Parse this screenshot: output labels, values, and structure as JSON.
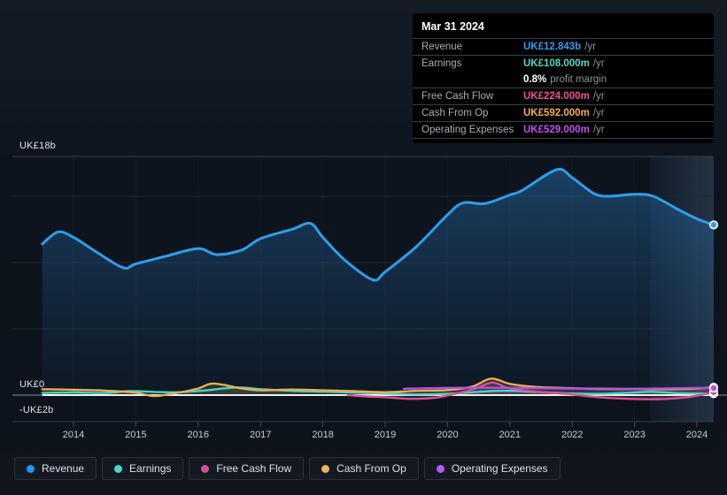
{
  "y_axis": {
    "labels": [
      "UK£18b",
      "UK£0",
      "-UK£2b"
    ]
  },
  "x_axis": {
    "years": [
      "2014",
      "2015",
      "2016",
      "2017",
      "2018",
      "2019",
      "2020",
      "2021",
      "2022",
      "2023",
      "2024"
    ]
  },
  "tooltip": {
    "date": "Mar 31 2024",
    "rows": [
      {
        "label": "Revenue",
        "value": "UK£12.843b",
        "suffix": "/yr",
        "color": "#2d9cf4"
      },
      {
        "label": "Earnings",
        "value": "UK£108.000m",
        "suffix": "/yr",
        "color": "#4fd8c4"
      },
      {
        "label": "Free Cash Flow",
        "value": "UK£224.000m",
        "suffix": "/yr",
        "color": "#ef4fa0"
      },
      {
        "label": "Cash From Op",
        "value": "UK£592.000m",
        "suffix": "/yr",
        "color": "#f2b04e"
      },
      {
        "label": "Operating Expenses",
        "value": "UK£529.000m",
        "suffix": "/yr",
        "color": "#c44ff0"
      }
    ],
    "profit_margin": {
      "value": "0.8%",
      "text": "profit margin"
    }
  },
  "legend": {
    "items": [
      {
        "label": "Revenue",
        "color": "#2196f3"
      },
      {
        "label": "Earnings",
        "color": "#4bd6c3"
      },
      {
        "label": "Free Cash Flow",
        "color": "#cf5090"
      },
      {
        "label": "Cash From Op",
        "color": "#eab457"
      },
      {
        "label": "Operating Expenses",
        "color": "#b25cf0"
      }
    ]
  },
  "chart_data": {
    "type": "area",
    "title": "Revenue & earnings history with tooltip for Mar 31 2024",
    "x_unit": "fiscal year (decimal)",
    "y_unit": "UK£ billions",
    "xlim": [
      2013.5,
      2024.45
    ],
    "ylim": [
      -2,
      18
    ],
    "x_ticks": [
      2014,
      2015,
      2016,
      2017,
      2018,
      2019,
      2020,
      2021,
      2022,
      2023,
      2024
    ],
    "y_gridlines": [
      18,
      15,
      10,
      5,
      -2
    ],
    "zero_line": 0,
    "grid": true,
    "legend_position": "bottom-left",
    "highlight_band": {
      "from": 2023.25,
      "to": 2024.27
    },
    "series": [
      {
        "name": "Revenue",
        "color": "#2f9de9",
        "width": 3,
        "fill": "gradient",
        "points": [
          [
            2013.5,
            11.4
          ],
          [
            2013.75,
            12.3
          ],
          [
            2014,
            11.9
          ],
          [
            2014.4,
            10.7
          ],
          [
            2014.8,
            9.6
          ],
          [
            2015,
            9.9
          ],
          [
            2015.5,
            10.5
          ],
          [
            2016,
            11.05
          ],
          [
            2016.3,
            10.6
          ],
          [
            2016.7,
            10.95
          ],
          [
            2017,
            11.8
          ],
          [
            2017.5,
            12.5
          ],
          [
            2017.8,
            12.95
          ],
          [
            2018,
            11.9
          ],
          [
            2018.35,
            10.2
          ],
          [
            2018.8,
            8.7
          ],
          [
            2019,
            9.3
          ],
          [
            2019.5,
            11.2
          ],
          [
            2020,
            13.6
          ],
          [
            2020.25,
            14.5
          ],
          [
            2020.6,
            14.45
          ],
          [
            2021,
            15.1
          ],
          [
            2021.2,
            15.45
          ],
          [
            2021.75,
            17.0
          ],
          [
            2022,
            16.4
          ],
          [
            2022.35,
            15.2
          ],
          [
            2022.6,
            15.0
          ],
          [
            2023,
            15.15
          ],
          [
            2023.3,
            15.0
          ],
          [
            2023.7,
            14.0
          ],
          [
            2024,
            13.3
          ],
          [
            2024.27,
            12.843
          ]
        ]
      },
      {
        "name": "Earnings",
        "color": "#46d7c2",
        "width": 2.4,
        "fill_opacity": 0.1,
        "points": [
          [
            2013.5,
            0.16
          ],
          [
            2014,
            0.2
          ],
          [
            2014.5,
            0.16
          ],
          [
            2014.9,
            0.3
          ],
          [
            2015.3,
            0.24
          ],
          [
            2015.7,
            0.22
          ],
          [
            2016.1,
            0.35
          ],
          [
            2016.6,
            0.57
          ],
          [
            2017,
            0.45
          ],
          [
            2017.5,
            0.32
          ],
          [
            2018,
            0.26
          ],
          [
            2018.5,
            0.2
          ],
          [
            2019,
            0.12
          ],
          [
            2019.5,
            0.05
          ],
          [
            2020,
            0.1
          ],
          [
            2020.6,
            0.28
          ],
          [
            2021,
            0.33
          ],
          [
            2021.5,
            0.22
          ],
          [
            2022,
            0.12
          ],
          [
            2022.5,
            0.1
          ],
          [
            2023,
            0.2
          ],
          [
            2023.3,
            0.25
          ],
          [
            2023.7,
            0.15
          ],
          [
            2024.27,
            0.108
          ]
        ]
      },
      {
        "name": "Free Cash Flow",
        "color": "#d94f92",
        "width": 2.4,
        "fill_opacity": 0.14,
        "points": [
          [
            2018.4,
            0.0
          ],
          [
            2018.7,
            -0.1
          ],
          [
            2019,
            -0.16
          ],
          [
            2019.4,
            -0.28
          ],
          [
            2019.8,
            -0.2
          ],
          [
            2020.1,
            0.08
          ],
          [
            2020.45,
            0.5
          ],
          [
            2020.72,
            0.95
          ],
          [
            2021,
            0.5
          ],
          [
            2021.5,
            0.24
          ],
          [
            2022,
            0.05
          ],
          [
            2022.4,
            -0.15
          ],
          [
            2022.9,
            -0.28
          ],
          [
            2023.4,
            -0.3
          ],
          [
            2023.8,
            -0.18
          ],
          [
            2024.05,
            0.0
          ],
          [
            2024.27,
            0.224
          ]
        ]
      },
      {
        "name": "Cash From Op",
        "color": "#e9ad55",
        "width": 2.4,
        "fill_opacity": 0.15,
        "points": [
          [
            2013.5,
            0.45
          ],
          [
            2014,
            0.4
          ],
          [
            2014.5,
            0.34
          ],
          [
            2015,
            0.18
          ],
          [
            2015.3,
            -0.07
          ],
          [
            2015.7,
            0.2
          ],
          [
            2016,
            0.5
          ],
          [
            2016.25,
            0.87
          ],
          [
            2016.7,
            0.5
          ],
          [
            2017,
            0.36
          ],
          [
            2017.5,
            0.42
          ],
          [
            2018,
            0.36
          ],
          [
            2018.5,
            0.3
          ],
          [
            2019,
            0.22
          ],
          [
            2019.5,
            0.32
          ],
          [
            2020,
            0.38
          ],
          [
            2020.4,
            0.65
          ],
          [
            2020.7,
            1.25
          ],
          [
            2021,
            0.85
          ],
          [
            2021.4,
            0.62
          ],
          [
            2022,
            0.52
          ],
          [
            2022.5,
            0.46
          ],
          [
            2023,
            0.46
          ],
          [
            2023.5,
            0.44
          ],
          [
            2024,
            0.5
          ],
          [
            2024.27,
            0.592
          ]
        ]
      },
      {
        "name": "Operating Expenses",
        "color": "#ad53ea",
        "width": 2.4,
        "fill_opacity": 0.1,
        "points": [
          [
            2019.3,
            0.48
          ],
          [
            2019.7,
            0.52
          ],
          [
            2020.1,
            0.55
          ],
          [
            2020.6,
            0.56
          ],
          [
            2021,
            0.55
          ],
          [
            2021.5,
            0.52
          ],
          [
            2022,
            0.5
          ],
          [
            2022.5,
            0.49
          ],
          [
            2023,
            0.48
          ],
          [
            2023.5,
            0.51
          ],
          [
            2024,
            0.54
          ],
          [
            2024.27,
            0.529
          ]
        ]
      }
    ]
  }
}
